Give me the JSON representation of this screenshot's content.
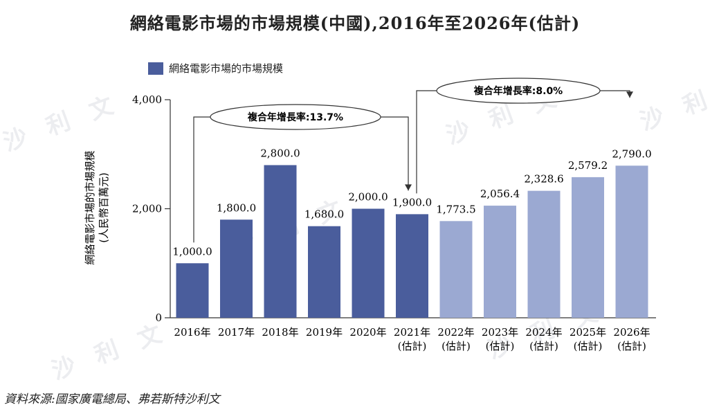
{
  "title": "網絡電影市場的市場規模(中國),2016年至2026年(估計)",
  "source": "資料來源:國家廣電總局、弗若斯特沙利文",
  "watermark": "沙 利 文",
  "colors": {
    "actual": "#4a5d9c",
    "estimate": "#9ba9d2",
    "axis": "#333333"
  },
  "chart_data": {
    "type": "bar",
    "ylabel": "網絡電影市場的市場規模",
    "ylabel_unit": "(人民幣百萬元)",
    "ylim": [
      0,
      4000
    ],
    "yticks": [
      "0",
      "2,000",
      "4,000"
    ],
    "ytick_values": [
      0,
      2000,
      4000
    ],
    "legend": "網絡電影市場的市場規模",
    "categories": [
      {
        "year": "2016年",
        "note": ""
      },
      {
        "year": "2017年",
        "note": ""
      },
      {
        "year": "2018年",
        "note": ""
      },
      {
        "year": "2019年",
        "note": ""
      },
      {
        "year": "2020年",
        "note": ""
      },
      {
        "year": "2021年",
        "note": "(估計)"
      },
      {
        "year": "2022年",
        "note": "(估計)"
      },
      {
        "year": "2023年",
        "note": "(估計)"
      },
      {
        "year": "2024年",
        "note": "(估計)"
      },
      {
        "year": "2025年",
        "note": "(估計)"
      },
      {
        "year": "2026年",
        "note": "(估計)"
      }
    ],
    "values": [
      1000.0,
      1800.0,
      2800.0,
      1680.0,
      2000.0,
      1900.0,
      1773.5,
      2056.4,
      2328.6,
      2579.2,
      2790.0
    ],
    "labels": [
      "1,000.0",
      "1,800.0",
      "2,800.0",
      "1,680.0",
      "2,000.0",
      "1,900.0",
      "1,773.5",
      "2,056.4",
      "2,328.6",
      "2,579.2",
      "2,790.0"
    ],
    "shade": [
      "actual",
      "actual",
      "actual",
      "actual",
      "actual",
      "actual",
      "estimate",
      "estimate",
      "estimate",
      "estimate",
      "estimate"
    ],
    "cagr": [
      {
        "label": "複合年增長率:13.7%",
        "from": 0,
        "to": 5
      },
      {
        "label": "複合年增長率:8.0%",
        "from": 5,
        "to": 10
      }
    ]
  }
}
